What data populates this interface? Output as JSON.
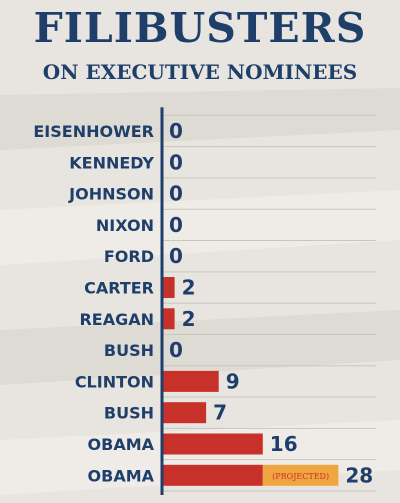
{
  "title": "FILIBUSTERS",
  "subtitle": "ON EXECUTIVE NOMINEES",
  "colors": {
    "text": "#1f3f6b",
    "bar": "#c8302a",
    "projected": "#f0a640",
    "projected_text": "#c8302a",
    "background": "#e8e5e0",
    "gridline": "#c9c5bf"
  },
  "chart_data": {
    "type": "bar",
    "orientation": "horizontal",
    "categories": [
      "EISENHOWER",
      "KENNEDY",
      "JOHNSON",
      "NIXON",
      "FORD",
      "CARTER",
      "REAGAN",
      "BUSH",
      "CLINTON",
      "BUSH",
      "OBAMA",
      "OBAMA"
    ],
    "values": [
      0,
      0,
      0,
      0,
      0,
      2,
      2,
      0,
      9,
      7,
      16,
      28
    ],
    "projected": [
      {
        "index": 11,
        "actual": 16,
        "projected_total": 28,
        "label": "(PROJECTED)"
      }
    ],
    "xlim": [
      0,
      35
    ],
    "grid": true
  }
}
